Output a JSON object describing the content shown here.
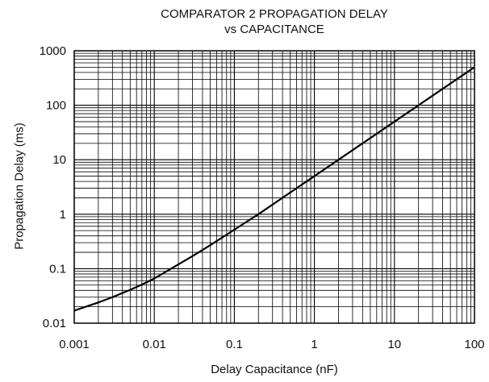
{
  "chart_data": {
    "type": "line",
    "title": "COMPARATOR 2 PROPAGATION DELAY",
    "subtitle": "vs CAPACITANCE",
    "xlabel": "Delay Capacitance (nF)",
    "ylabel": "Propagation Delay (ms)",
    "x_scale": "log",
    "y_scale": "log",
    "xlim": [
      0.001,
      100
    ],
    "ylim": [
      0.01,
      1000
    ],
    "x_ticks": [
      "0.001",
      "0.01",
      "0.1",
      "1",
      "10",
      "100"
    ],
    "y_ticks": [
      "0.01",
      "0.1",
      "1",
      "10",
      "100",
      "1000"
    ],
    "grid": true,
    "series": [
      {
        "x": [
          0.001,
          0.002,
          0.003,
          0.005,
          0.007,
          0.01,
          0.02,
          0.03,
          0.05,
          0.07,
          0.1,
          0.2,
          0.3,
          0.5,
          0.7,
          1,
          2,
          3,
          5,
          7,
          10,
          20,
          30,
          50,
          70,
          100
        ],
        "y": [
          0.017,
          0.024,
          0.03,
          0.041,
          0.051,
          0.066,
          0.12,
          0.17,
          0.27,
          0.37,
          0.52,
          1.0,
          1.5,
          2.5,
          3.5,
          5.0,
          10,
          15,
          25,
          35,
          50,
          100,
          150,
          250,
          350,
          500
        ]
      }
    ]
  }
}
